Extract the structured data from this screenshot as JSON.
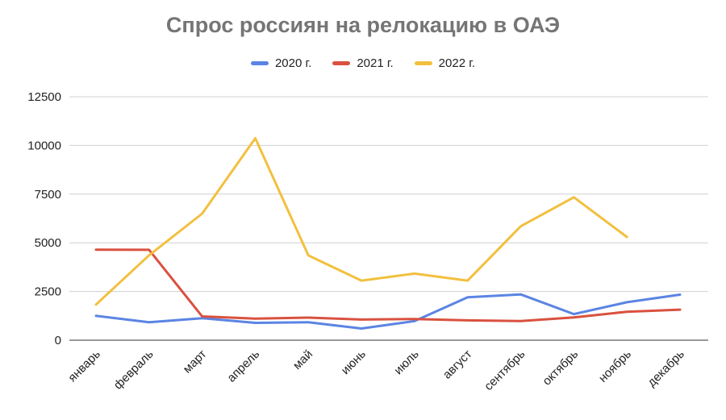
{
  "chart_data": {
    "type": "line",
    "title": "Спрос россиян на релокацию в ОАЭ",
    "xlabel": "",
    "ylabel": "",
    "categories": [
      "январь",
      "февраль",
      "март",
      "апрель",
      "май",
      "июнь",
      "июль",
      "август",
      "сентябрь",
      "октябрь",
      "ноябрь",
      "декабрь"
    ],
    "ylim": [
      0,
      12500
    ],
    "yticks": [
      0,
      2500,
      5000,
      7500,
      10000,
      12500
    ],
    "grid": true,
    "legend_position": "top",
    "series": [
      {
        "name": "2020 г.",
        "color": "#5b84e3",
        "values": [
          1250,
          920,
          1130,
          890,
          920,
          600,
          980,
          2200,
          2350,
          1340,
          1950,
          2340
        ]
      },
      {
        "name": "2021 г.",
        "color": "#d9513f",
        "values": [
          4650,
          4640,
          1220,
          1110,
          1160,
          1060,
          1090,
          1020,
          980,
          1170,
          1460,
          1570
        ]
      },
      {
        "name": "2022 г.",
        "color": "#f2c03f",
        "values": [
          1830,
          4360,
          6500,
          10370,
          4350,
          3060,
          3420,
          3060,
          5850,
          7340,
          5300,
          null
        ]
      }
    ]
  }
}
